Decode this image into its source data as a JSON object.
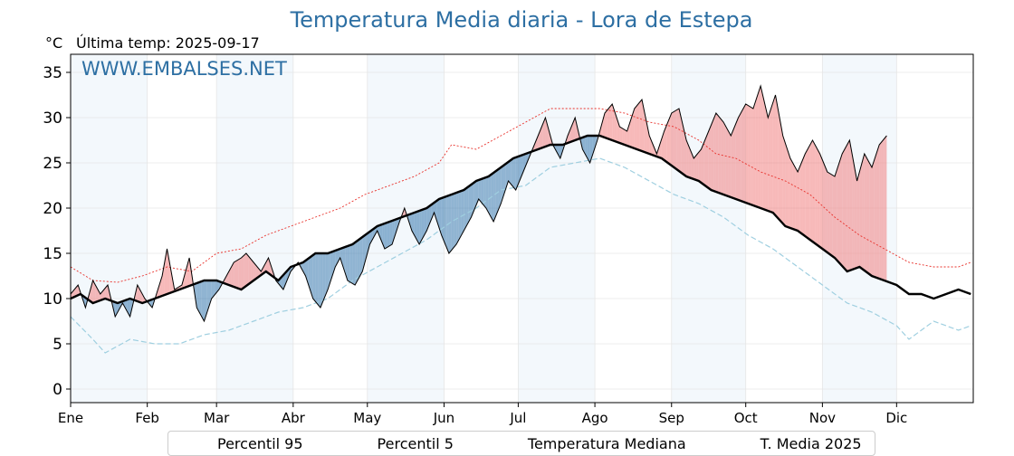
{
  "chart_data": {
    "type": "line",
    "title": "Temperatura Media diaria - Lora de Estepa",
    "unit": "°C",
    "last_update": "Última temp: 2025-09-17",
    "watermark": "WWW.EMBALSES.NET",
    "ylim": [
      -1.5,
      37
    ],
    "yticks": [
      0,
      5,
      10,
      15,
      20,
      25,
      30,
      35
    ],
    "grid": true,
    "legend_position": "bottom",
    "months": [
      "Ene",
      "Feb",
      "Mar",
      "Abr",
      "May",
      "Jun",
      "Jul",
      "Ago",
      "Sep",
      "Oct",
      "Nov",
      "Dic"
    ],
    "colors": {
      "p95": "#e8302a",
      "p5": "#9fcfe0",
      "median": "#000000",
      "current": "#000000",
      "above_fill": "#f08080",
      "below_fill": "#4682b4",
      "band_even": "#f3f8fc",
      "band_odd": "#ffffff"
    },
    "series": [
      {
        "name": "Percentil 95",
        "style": "dotted",
        "points": [
          [
            1,
            13.5
          ],
          [
            10,
            12.0
          ],
          [
            20,
            11.8
          ],
          [
            30,
            12.5
          ],
          [
            40,
            13.5
          ],
          [
            50,
            13.0
          ],
          [
            60,
            15.0
          ],
          [
            70,
            15.5
          ],
          [
            80,
            17.0
          ],
          [
            90,
            18.0
          ],
          [
            100,
            19.0
          ],
          [
            110,
            20.0
          ],
          [
            120,
            21.5
          ],
          [
            130,
            22.5
          ],
          [
            140,
            23.5
          ],
          [
            150,
            25.0
          ],
          [
            155,
            27.0
          ],
          [
            165,
            26.5
          ],
          [
            175,
            28.0
          ],
          [
            185,
            29.5
          ],
          [
            195,
            31.0
          ],
          [
            205,
            31.0
          ],
          [
            215,
            31.0
          ],
          [
            225,
            30.5
          ],
          [
            235,
            29.5
          ],
          [
            245,
            29.0
          ],
          [
            255,
            27.5
          ],
          [
            262,
            26.0
          ],
          [
            270,
            25.5
          ],
          [
            280,
            24.0
          ],
          [
            290,
            23.0
          ],
          [
            300,
            21.5
          ],
          [
            310,
            19.0
          ],
          [
            320,
            17.0
          ],
          [
            330,
            15.5
          ],
          [
            340,
            14.0
          ],
          [
            350,
            13.5
          ],
          [
            360,
            13.5
          ],
          [
            365,
            14.0
          ]
        ]
      },
      {
        "name": "Percentil 5",
        "style": "dashed",
        "points": [
          [
            1,
            8.0
          ],
          [
            10,
            5.5
          ],
          [
            15,
            4.0
          ],
          [
            25,
            5.5
          ],
          [
            35,
            5.0
          ],
          [
            45,
            5.0
          ],
          [
            55,
            6.0
          ],
          [
            65,
            6.5
          ],
          [
            75,
            7.5
          ],
          [
            85,
            8.5
          ],
          [
            95,
            9.0
          ],
          [
            105,
            10.0
          ],
          [
            115,
            12.0
          ],
          [
            125,
            13.5
          ],
          [
            135,
            15.0
          ],
          [
            145,
            16.5
          ],
          [
            155,
            18.5
          ],
          [
            165,
            20.0
          ],
          [
            175,
            22.0
          ],
          [
            185,
            22.5
          ],
          [
            195,
            24.5
          ],
          [
            205,
            25.0
          ],
          [
            215,
            25.5
          ],
          [
            225,
            24.5
          ],
          [
            235,
            23.0
          ],
          [
            245,
            21.5
          ],
          [
            255,
            20.5
          ],
          [
            265,
            19.0
          ],
          [
            275,
            17.0
          ],
          [
            285,
            15.5
          ],
          [
            295,
            13.5
          ],
          [
            305,
            11.5
          ],
          [
            315,
            9.5
          ],
          [
            325,
            8.5
          ],
          [
            335,
            7.0
          ],
          [
            340,
            5.5
          ],
          [
            345,
            6.5
          ],
          [
            350,
            7.5
          ],
          [
            355,
            7.0
          ],
          [
            360,
            6.5
          ],
          [
            365,
            7.0
          ]
        ]
      },
      {
        "name": "Temperatura Mediana",
        "style": "solid-thick",
        "points": [
          [
            1,
            10.0
          ],
          [
            5,
            10.5
          ],
          [
            10,
            9.5
          ],
          [
            15,
            10.0
          ],
          [
            20,
            9.5
          ],
          [
            25,
            10.0
          ],
          [
            30,
            9.5
          ],
          [
            35,
            10.0
          ],
          [
            40,
            10.5
          ],
          [
            45,
            11.0
          ],
          [
            50,
            11.5
          ],
          [
            55,
            12.0
          ],
          [
            60,
            12.0
          ],
          [
            65,
            11.5
          ],
          [
            70,
            11.0
          ],
          [
            75,
            12.0
          ],
          [
            80,
            13.0
          ],
          [
            85,
            12.0
          ],
          [
            90,
            13.5
          ],
          [
            95,
            14.0
          ],
          [
            100,
            15.0
          ],
          [
            105,
            15.0
          ],
          [
            110,
            15.5
          ],
          [
            115,
            16.0
          ],
          [
            120,
            17.0
          ],
          [
            125,
            18.0
          ],
          [
            130,
            18.5
          ],
          [
            135,
            19.0
          ],
          [
            140,
            19.5
          ],
          [
            145,
            20.0
          ],
          [
            150,
            21.0
          ],
          [
            155,
            21.5
          ],
          [
            160,
            22.0
          ],
          [
            165,
            23.0
          ],
          [
            170,
            23.5
          ],
          [
            175,
            24.5
          ],
          [
            180,
            25.5
          ],
          [
            185,
            26.0
          ],
          [
            190,
            26.5
          ],
          [
            195,
            27.0
          ],
          [
            200,
            27.0
          ],
          [
            205,
            27.5
          ],
          [
            210,
            28.0
          ],
          [
            215,
            28.0
          ],
          [
            220,
            27.5
          ],
          [
            225,
            27.0
          ],
          [
            230,
            26.5
          ],
          [
            235,
            26.0
          ],
          [
            240,
            25.5
          ],
          [
            245,
            24.5
          ],
          [
            250,
            23.5
          ],
          [
            255,
            23.0
          ],
          [
            260,
            22.0
          ],
          [
            265,
            21.5
          ],
          [
            270,
            21.0
          ],
          [
            275,
            20.5
          ],
          [
            280,
            20.0
          ],
          [
            285,
            19.5
          ],
          [
            290,
            18.0
          ],
          [
            295,
            17.5
          ],
          [
            300,
            16.5
          ],
          [
            305,
            15.5
          ],
          [
            310,
            14.5
          ],
          [
            315,
            13.0
          ],
          [
            320,
            13.5
          ],
          [
            325,
            12.5
          ],
          [
            330,
            12.0
          ],
          [
            335,
            11.5
          ],
          [
            340,
            10.5
          ],
          [
            345,
            10.5
          ],
          [
            350,
            10.0
          ],
          [
            355,
            10.5
          ],
          [
            360,
            11.0
          ],
          [
            365,
            10.5
          ]
        ]
      },
      {
        "name": "T. Media 2025",
        "style": "solid-thin",
        "points": [
          [
            1,
            10.5
          ],
          [
            4,
            11.5
          ],
          [
            7,
            9.0
          ],
          [
            10,
            12.0
          ],
          [
            13,
            10.5
          ],
          [
            16,
            11.5
          ],
          [
            19,
            8.0
          ],
          [
            22,
            9.5
          ],
          [
            25,
            8.0
          ],
          [
            28,
            11.5
          ],
          [
            31,
            10.0
          ],
          [
            34,
            9.0
          ],
          [
            38,
            12.5
          ],
          [
            40,
            15.5
          ],
          [
            43,
            11.0
          ],
          [
            46,
            11.5
          ],
          [
            49,
            14.5
          ],
          [
            52,
            9.0
          ],
          [
            55,
            7.5
          ],
          [
            58,
            10.0
          ],
          [
            61,
            11.0
          ],
          [
            64,
            12.5
          ],
          [
            67,
            14.0
          ],
          [
            70,
            14.5
          ],
          [
            72,
            15.0
          ],
          [
            75,
            14.0
          ],
          [
            78,
            13.0
          ],
          [
            81,
            14.5
          ],
          [
            84,
            12.0
          ],
          [
            87,
            11.0
          ],
          [
            90,
            13.0
          ],
          [
            93,
            14.0
          ],
          [
            96,
            12.5
          ],
          [
            99,
            10.0
          ],
          [
            102,
            9.0
          ],
          [
            105,
            11.0
          ],
          [
            108,
            13.5
          ],
          [
            110,
            14.5
          ],
          [
            113,
            12.0
          ],
          [
            116,
            11.5
          ],
          [
            119,
            13.0
          ],
          [
            122,
            16.0
          ],
          [
            125,
            17.5
          ],
          [
            128,
            15.5
          ],
          [
            131,
            16.0
          ],
          [
            134,
            18.5
          ],
          [
            136,
            20.0
          ],
          [
            139,
            17.5
          ],
          [
            142,
            16.0
          ],
          [
            145,
            17.5
          ],
          [
            148,
            19.5
          ],
          [
            151,
            17.0
          ],
          [
            154,
            15.0
          ],
          [
            157,
            16.0
          ],
          [
            160,
            17.5
          ],
          [
            163,
            19.0
          ],
          [
            166,
            21.0
          ],
          [
            169,
            20.0
          ],
          [
            172,
            18.5
          ],
          [
            175,
            20.5
          ],
          [
            178,
            23.0
          ],
          [
            181,
            22.0
          ],
          [
            184,
            24.0
          ],
          [
            187,
            26.0
          ],
          [
            190,
            28.0
          ],
          [
            193,
            30.0
          ],
          [
            196,
            27.0
          ],
          [
            199,
            25.5
          ],
          [
            202,
            28.0
          ],
          [
            205,
            30.0
          ],
          [
            208,
            26.5
          ],
          [
            211,
            25.0
          ],
          [
            214,
            27.5
          ],
          [
            217,
            30.5
          ],
          [
            220,
            31.5
          ],
          [
            223,
            29.0
          ],
          [
            226,
            28.5
          ],
          [
            229,
            31.0
          ],
          [
            232,
            32.0
          ],
          [
            235,
            28.0
          ],
          [
            238,
            26.0
          ],
          [
            241,
            28.5
          ],
          [
            244,
            30.5
          ],
          [
            247,
            31.0
          ],
          [
            250,
            27.5
          ],
          [
            253,
            25.5
          ],
          [
            256,
            26.5
          ],
          [
            259,
            28.5
          ],
          [
            262,
            30.5
          ],
          [
            265,
            29.5
          ],
          [
            268,
            28.0
          ],
          [
            271,
            30.0
          ],
          [
            274,
            31.5
          ],
          [
            277,
            31.0
          ],
          [
            280,
            33.5
          ],
          [
            283,
            30.0
          ],
          [
            286,
            32.5
          ],
          [
            289,
            28.0
          ],
          [
            292,
            25.5
          ],
          [
            295,
            24.0
          ],
          [
            298,
            26.0
          ],
          [
            301,
            27.5
          ],
          [
            304,
            26.0
          ],
          [
            307,
            24.0
          ],
          [
            310,
            23.5
          ],
          [
            313,
            26.0
          ],
          [
            316,
            27.5
          ],
          [
            319,
            23.0
          ],
          [
            322,
            26.0
          ],
          [
            325,
            24.5
          ],
          [
            328,
            27.0
          ],
          [
            331,
            28.0
          ]
        ]
      }
    ]
  },
  "legend": [
    {
      "label": "Percentil 95",
      "style": "dotted"
    },
    {
      "label": "Percentil 5",
      "style": "dashed"
    },
    {
      "label": "Temperatura Mediana",
      "style": "solid-thick"
    },
    {
      "label": "T. Media 2025",
      "style": "solid-thin"
    }
  ]
}
